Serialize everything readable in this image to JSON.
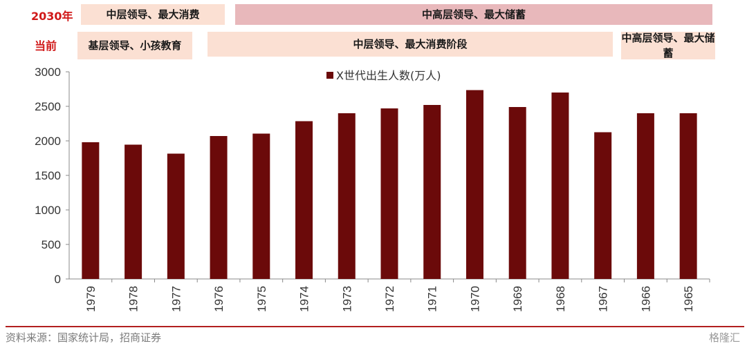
{
  "rows": {
    "row1_label": "2030年",
    "row2_label": "当前"
  },
  "bands": {
    "b1": "中层领导、最大消费",
    "b2": "中高层领导、最大储蓄",
    "b3": "基层领导、小孩教育",
    "b4": "中层领导、最大消费阶段",
    "b5": "中高层领导、最大储蓄"
  },
  "colors": {
    "bar": "#6b0a0a",
    "light_band": "#fbe0d3",
    "dark_band": "#e8b8bb",
    "label_red": "#d01818"
  },
  "chart_data": {
    "type": "bar",
    "categories": [
      "1979",
      "1978",
      "1977",
      "1976",
      "1975",
      "1974",
      "1973",
      "1972",
      "1971",
      "1970",
      "1969",
      "1968",
      "1967",
      "1966",
      "1965"
    ],
    "series": [
      {
        "name": "X世代出生人数(万人)",
        "values": [
          1980,
          1945,
          1815,
          2070,
          2105,
          2285,
          2400,
          2470,
          2520,
          2735,
          2490,
          2700,
          2125,
          2400,
          2400
        ]
      }
    ],
    "ylim": [
      0,
      3000
    ],
    "yticks": [
      "0",
      "500",
      "1000",
      "1500",
      "2000",
      "2500",
      "3000"
    ],
    "legend_position": "top-center",
    "grid": false
  },
  "footer": {
    "source": "资料来源：国家统计局，招商证券",
    "logo": "格隆汇"
  }
}
